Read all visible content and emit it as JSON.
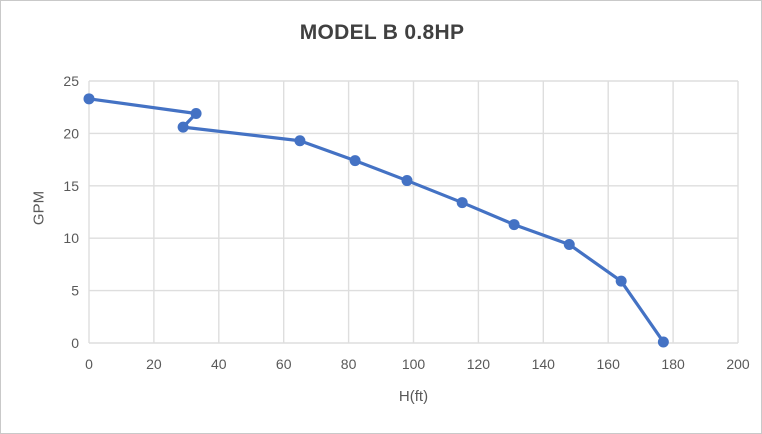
{
  "chart_data": {
    "type": "line",
    "title": "MODEL B 0.8HP",
    "xlabel": "H(ft)",
    "ylabel": "GPM",
    "xlim": [
      0,
      200
    ],
    "ylim": [
      0,
      25
    ],
    "xticks": [
      0,
      20,
      40,
      60,
      80,
      100,
      120,
      140,
      160,
      180,
      200
    ],
    "yticks": [
      25,
      20,
      15,
      10,
      5,
      0
    ],
    "grid": true,
    "legend": false,
    "series": [
      {
        "name": "MODEL B 0.8HP",
        "marker": "circle",
        "x": [
          0,
          33,
          29,
          65,
          82,
          98,
          115,
          131,
          148,
          164,
          177
        ],
        "y": [
          23.3,
          21.9,
          20.6,
          19.3,
          17.4,
          15.5,
          13.4,
          11.3,
          9.4,
          5.9,
          0.1
        ]
      }
    ],
    "colors": {
      "series_line": "#4472C4",
      "marker_fill": "#4472C4",
      "gridline": "#DEDEDE",
      "tick_text": "#595959",
      "axis_title_text": "#595959",
      "title_text": "#404040"
    }
  }
}
